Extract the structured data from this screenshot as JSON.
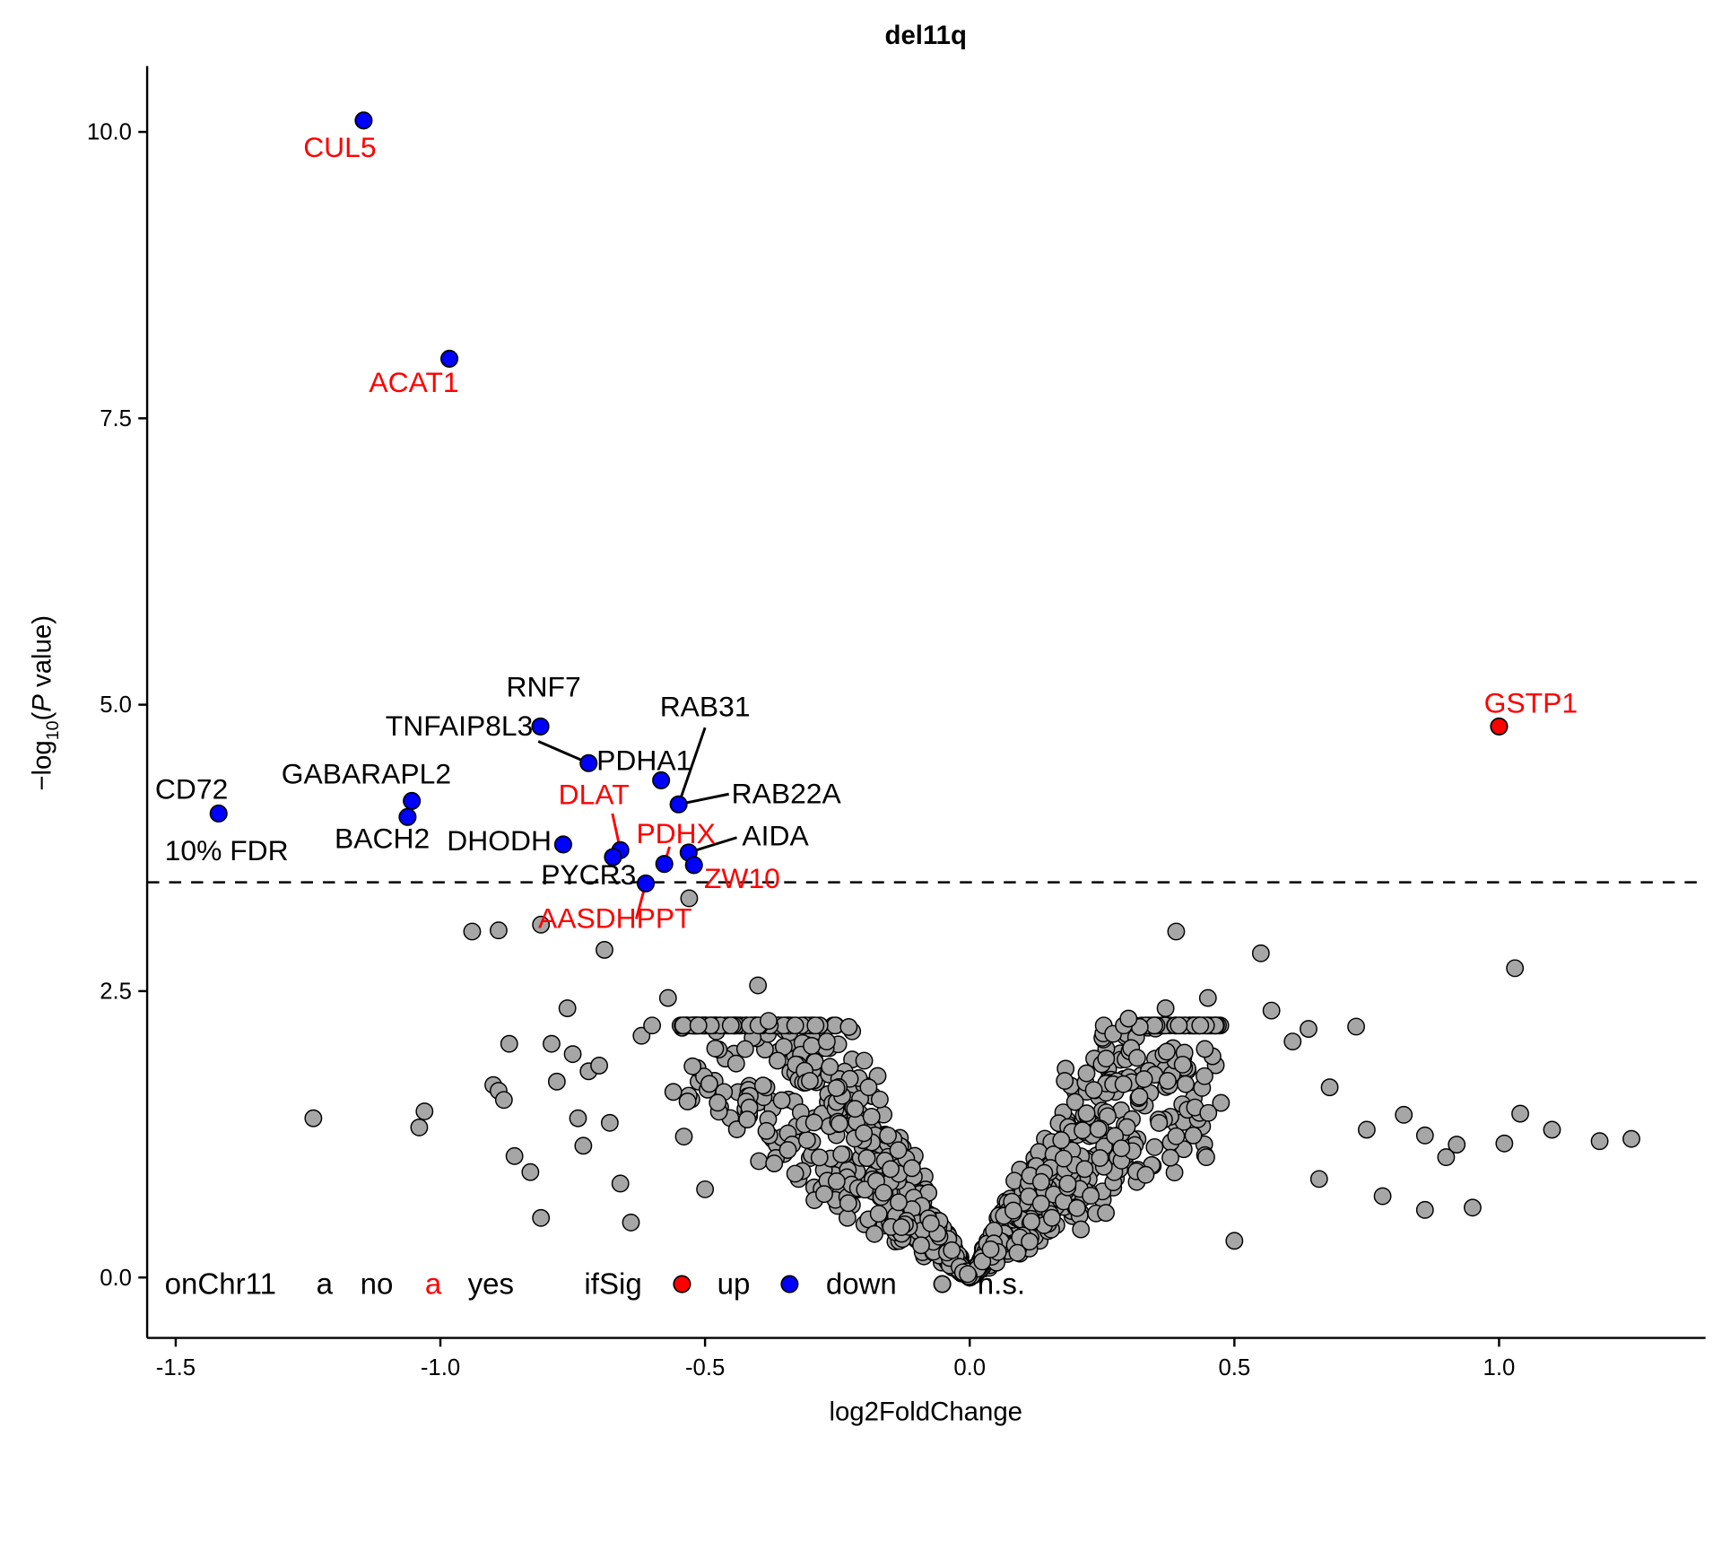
{
  "chart_data": {
    "type": "scatter",
    "title": "del11q",
    "xlabel": "log2FoldChange",
    "ylabel_prefix": "−log",
    "ylabel_sub": "10",
    "ylabel_open": "(",
    "ylabel_italic": "P",
    "ylabel_suffix": " value)",
    "xlim": [
      -1.555,
      1.4
    ],
    "ylim": [
      -0.55,
      10.65
    ],
    "x_ticks": [
      -1.5,
      -1.0,
      -0.5,
      0.0,
      0.5,
      1.0
    ],
    "x_tick_labels": [
      "-1.5",
      "-1.0",
      "-0.5",
      "0.0",
      "0.5",
      "1.0"
    ],
    "y_ticks": [
      0.0,
      2.5,
      5.0,
      7.5,
      10.0
    ],
    "y_tick_labels": [
      "0.0",
      "2.5",
      "5.0",
      "7.5",
      "10.0"
    ],
    "grid": false,
    "threshold": {
      "y": 3.45,
      "label": "10% FDR",
      "style": "dashed"
    },
    "colors": {
      "up": "#ff0000",
      "down": "#0000ff",
      "ns": "#a6a6a6",
      "onChr11_yes": "#ff0000",
      "onChr11_no": "#000000"
    },
    "significant_points": [
      {
        "gene": "CUL5",
        "x": -1.145,
        "y": 10.1,
        "sig": "down",
        "onChr11": "yes"
      },
      {
        "gene": "ACAT1",
        "x": -0.983,
        "y": 8.02,
        "sig": "down",
        "onChr11": "yes"
      },
      {
        "gene": "GSTP1",
        "x": 1.0,
        "y": 4.81,
        "sig": "up",
        "onChr11": "yes"
      },
      {
        "gene": "RNF7",
        "x": -0.811,
        "y": 4.81,
        "sig": "down",
        "onChr11": "no"
      },
      {
        "gene": "TNFAIP8L3",
        "x": -0.72,
        "y": 4.49,
        "sig": "down",
        "onChr11": "no"
      },
      {
        "gene": "PDHA1",
        "x": -0.583,
        "y": 4.34,
        "sig": "down",
        "onChr11": "no"
      },
      {
        "gene": "RAB31",
        "x": -0.55,
        "y": 4.13,
        "sig": "down",
        "onChr11": "no"
      },
      {
        "gene": "RAB22A",
        "x": -0.55,
        "y": 4.13,
        "sig": "down",
        "onChr11": "no"
      },
      {
        "gene": "GABARAPL2",
        "x": -1.054,
        "y": 4.16,
        "sig": "down",
        "onChr11": "no"
      },
      {
        "gene": "BACH2",
        "x": -1.062,
        "y": 4.02,
        "sig": "down",
        "onChr11": "no"
      },
      {
        "gene": "CD72",
        "x": -1.419,
        "y": 4.05,
        "sig": "down",
        "onChr11": "no"
      },
      {
        "gene": "DHODH",
        "x": -0.768,
        "y": 3.78,
        "sig": "down",
        "onChr11": "no"
      },
      {
        "gene": "DLAT",
        "x": -0.66,
        "y": 3.73,
        "sig": "down",
        "onChr11": "yes"
      },
      {
        "gene": "PYCR3",
        "x": -0.674,
        "y": 3.67,
        "sig": "down",
        "onChr11": "no"
      },
      {
        "gene": "PDHX",
        "x": -0.577,
        "y": 3.61,
        "sig": "down",
        "onChr11": "yes"
      },
      {
        "gene": "AIDA",
        "x": -0.531,
        "y": 3.71,
        "sig": "down",
        "onChr11": "no"
      },
      {
        "gene": "ZW10",
        "x": -0.521,
        "y": 3.6,
        "sig": "down",
        "onChr11": "yes"
      },
      {
        "gene": "AASDHPPT",
        "x": -0.612,
        "y": 3.44,
        "sig": "down",
        "onChr11": "yes"
      }
    ],
    "labels": [
      {
        "text": "CUL5",
        "onChr11": "yes",
        "lx": -1.19,
        "ly": 9.78,
        "anchor": "middle"
      },
      {
        "text": "ACAT1",
        "onChr11": "yes",
        "lx": -1.05,
        "ly": 7.73,
        "anchor": "middle"
      },
      {
        "text": "GSTP1",
        "onChr11": "yes",
        "lx": 1.06,
        "ly": 4.93,
        "anchor": "middle"
      },
      {
        "text": "RNF7",
        "onChr11": "no",
        "lx": -0.805,
        "ly": 5.07,
        "anchor": "middle"
      },
      {
        "text": "TNFAIP8L3",
        "onChr11": "no",
        "lx": -0.825,
        "ly": 4.73,
        "anchor": "end",
        "seg": [
          -0.815,
          4.68,
          -0.72,
          4.49
        ]
      },
      {
        "text": "PDHA1",
        "onChr11": "no",
        "lx": -0.705,
        "ly": 4.43,
        "anchor": "start"
      },
      {
        "text": "RAB31",
        "onChr11": "no",
        "lx": -0.5,
        "ly": 4.9,
        "anchor": "middle",
        "seg": [
          -0.5,
          4.8,
          -0.55,
          4.13
        ]
      },
      {
        "text": "RAB22A",
        "onChr11": "no",
        "lx": -0.45,
        "ly": 4.14,
        "anchor": "start",
        "seg": [
          -0.455,
          4.22,
          -0.55,
          4.13
        ]
      },
      {
        "text": "GABARAPL2",
        "onChr11": "no",
        "lx": -1.14,
        "ly": 4.31,
        "anchor": "middle"
      },
      {
        "text": "BACH2",
        "onChr11": "no",
        "lx": -1.11,
        "ly": 3.75,
        "anchor": "middle"
      },
      {
        "text": "CD72",
        "onChr11": "no",
        "lx": -1.47,
        "ly": 4.18,
        "anchor": "middle"
      },
      {
        "text": "DHODH",
        "onChr11": "no",
        "lx": -0.79,
        "ly": 3.73,
        "anchor": "end"
      },
      {
        "text": "DLAT",
        "onChr11": "yes",
        "lx": -0.71,
        "ly": 4.13,
        "anchor": "middle",
        "seg": [
          -0.675,
          4.05,
          -0.66,
          3.73
        ]
      },
      {
        "text": "PYCR3",
        "onChr11": "no",
        "lx": -0.72,
        "ly": 3.43,
        "anchor": "middle"
      },
      {
        "text": "PDHX",
        "onChr11": "yes",
        "lx": -0.555,
        "ly": 3.79,
        "anchor": "middle",
        "seg": [
          -0.567,
          3.76,
          -0.577,
          3.61
        ]
      },
      {
        "text": "AIDA",
        "onChr11": "no",
        "lx": -0.43,
        "ly": 3.77,
        "anchor": "start",
        "seg": [
          -0.44,
          3.84,
          -0.531,
          3.71
        ]
      },
      {
        "text": "ZW10",
        "onChr11": "yes",
        "lx": -0.43,
        "ly": 3.4,
        "anchor": "middle"
      },
      {
        "text": "AASDHPPT",
        "onChr11": "yes",
        "lx": -0.67,
        "ly": 3.05,
        "anchor": "middle",
        "seg": [
          -0.63,
          3.13,
          -0.612,
          3.44
        ]
      }
    ],
    "ns_points_note": "Several thousand non-significant genes (grey) forming a V-shaped volcano centered at (0,0); extremes listed below",
    "ns_points": [
      [
        -1.24,
        1.39
      ],
      [
        -1.04,
        1.31
      ],
      [
        -1.03,
        1.45
      ],
      [
        -0.94,
        3.02
      ],
      [
        -0.89,
        3.03
      ],
      [
        -0.81,
        3.08
      ],
      [
        -0.69,
        2.86
      ],
      [
        -0.53,
        3.31
      ],
      [
        -0.9,
        1.68
      ],
      [
        -0.89,
        1.63
      ],
      [
        -0.88,
        1.55
      ],
      [
        -0.87,
        2.04
      ],
      [
        -0.86,
        1.06
      ],
      [
        -0.83,
        0.92
      ],
      [
        -0.81,
        0.52
      ],
      [
        -0.79,
        2.04
      ],
      [
        -0.78,
        1.71
      ],
      [
        -0.76,
        2.35
      ],
      [
        -0.75,
        1.95
      ],
      [
        -0.74,
        1.39
      ],
      [
        -0.73,
        1.15
      ],
      [
        -0.72,
        1.8
      ],
      [
        -0.7,
        1.85
      ],
      [
        -0.68,
        1.35
      ],
      [
        -0.66,
        0.82
      ],
      [
        -0.64,
        0.48
      ],
      [
        -0.62,
        2.11
      ],
      [
        -0.6,
        2.2
      ],
      [
        -0.57,
        2.44
      ],
      [
        -0.56,
        1.62
      ],
      [
        -0.54,
        1.23
      ],
      [
        -0.5,
        0.77
      ],
      [
        -0.4,
        2.55
      ],
      [
        -0.38,
        2.24
      ],
      [
        -0.27,
        2.06
      ],
      [
        -0.2,
        1.26
      ],
      [
        0.3,
        2.26
      ],
      [
        0.39,
        3.02
      ],
      [
        0.37,
        2.35
      ],
      [
        0.45,
        2.44
      ],
      [
        0.55,
        2.83
      ],
      [
        0.57,
        2.33
      ],
      [
        0.61,
        2.06
      ],
      [
        0.64,
        2.17
      ],
      [
        0.68,
        1.66
      ],
      [
        0.73,
        2.19
      ],
      [
        0.75,
        1.29
      ],
      [
        0.78,
        0.71
      ],
      [
        0.82,
        1.42
      ],
      [
        0.86,
        1.24
      ],
      [
        0.86,
        0.59
      ],
      [
        0.9,
        1.05
      ],
      [
        0.92,
        1.16
      ],
      [
        0.95,
        0.61
      ],
      [
        1.01,
        1.17
      ],
      [
        1.03,
        2.7
      ],
      [
        1.04,
        1.43
      ],
      [
        1.1,
        1.29
      ],
      [
        1.19,
        1.19
      ],
      [
        1.25,
        1.21
      ],
      [
        0.66,
        0.86
      ],
      [
        0.5,
        0.32
      ],
      [
        0.21,
        0.42
      ],
      [
        -0.18,
        0.38
      ]
    ]
  },
  "legend": {
    "onChr11_title": "onChr11",
    "onChr11_key_glyph": "a",
    "onChr11_items": [
      "no",
      "yes"
    ],
    "ifSig_title": "ifSig",
    "ifSig_items": [
      "up",
      "down",
      "n.s."
    ]
  }
}
